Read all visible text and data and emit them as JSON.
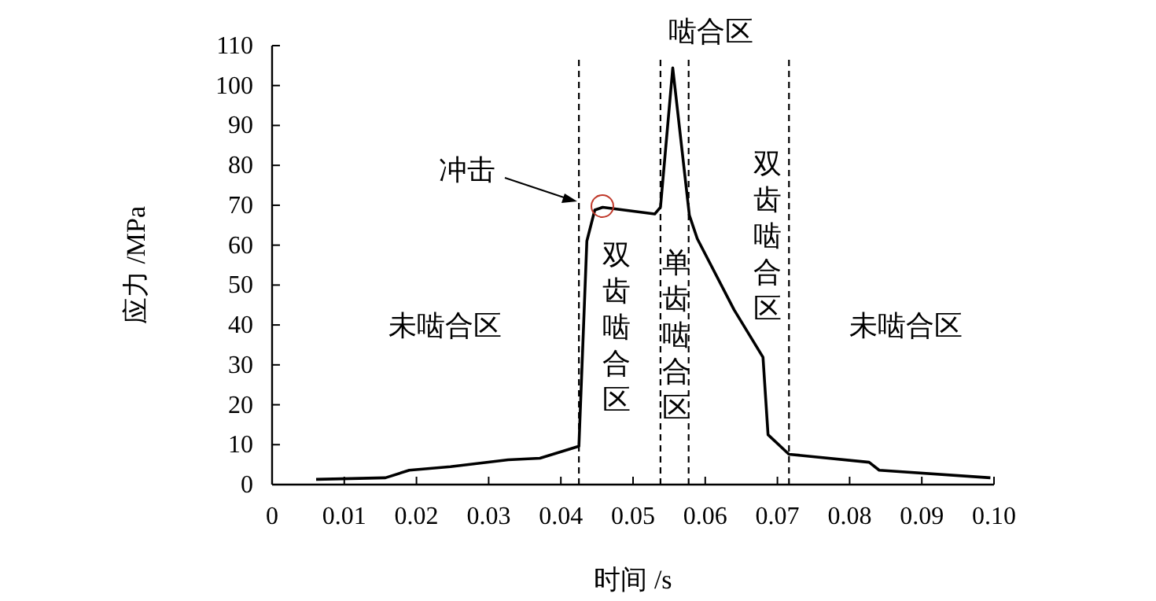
{
  "chart_data": {
    "type": "line",
    "xlabel": "时间 /s",
    "ylabel": "应力 /MPa",
    "series": [
      {
        "color": "#000000",
        "x": [
          0.0061,
          0.0157,
          0.019,
          0.0247,
          0.0327,
          0.0371,
          0.0425,
          0.0436,
          0.0447,
          0.0458,
          0.053,
          0.0538,
          0.0555,
          0.0578,
          0.0589,
          0.064,
          0.068,
          0.0687,
          0.0716,
          0.0827,
          0.0841,
          0.0995
        ],
        "values": [
          1.3,
          1.7,
          3.6,
          4.5,
          6.2,
          6.6,
          9.6,
          61,
          68.8,
          69.5,
          67.8,
          69.5,
          104.4,
          67.5,
          61.6,
          43.8,
          31.9,
          12.5,
          7.6,
          5.6,
          3.6,
          1.7
        ]
      }
    ],
    "xlim": [
      0,
      0.1
    ],
    "ylim": [
      0,
      110
    ],
    "xticks": [
      0,
      0.01,
      0.02,
      0.03,
      0.04,
      0.05,
      0.06,
      0.07,
      0.08,
      0.09,
      {
        "value": 0.1,
        "label": "0.10"
      }
    ],
    "yticks": [
      0,
      10,
      20,
      30,
      40,
      50,
      60,
      70,
      80,
      90,
      100,
      110
    ],
    "ref_lines": [
      {
        "axis": "x",
        "value": 0.0425,
        "line_style": "dashed"
      },
      {
        "axis": "x",
        "value": 0.0538,
        "line_style": "dashed"
      },
      {
        "axis": "x",
        "value": 0.0577,
        "line_style": "dashed"
      },
      {
        "axis": "x",
        "value": 0.0716,
        "line_style": "dashed"
      }
    ],
    "annotations": [
      "冲击",
      "未啮合区",
      "双齿啮合区",
      "单齿啮合区",
      "啮合区",
      "双齿啮合区",
      "未啮合区"
    ],
    "grid": false,
    "marker": "none",
    "line_style": "solid"
  }
}
